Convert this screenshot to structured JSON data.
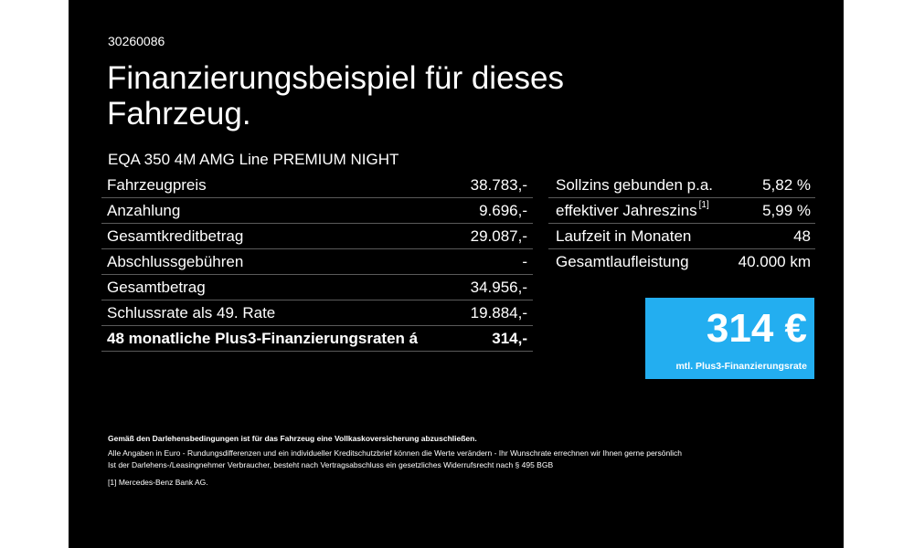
{
  "reference_number": "30260086",
  "headline": "Finanzierungsbeispiel für dieses Fahrzeug.",
  "model": "EQA 350 4M AMG Line PREMIUM NIGHT",
  "left_rows": [
    {
      "label": "Fahrzeugpreis",
      "value": "38.783,-"
    },
    {
      "label": "Anzahlung",
      "value": "9.696,-"
    },
    {
      "label": "Gesamtkreditbetrag",
      "value": "29.087,-"
    },
    {
      "label": "Abschlussgebühren",
      "value": "-"
    },
    {
      "label": "Gesamtbetrag",
      "value": "34.956,-"
    },
    {
      "label": "Schlussrate als 49. Rate",
      "value": "19.884,-"
    },
    {
      "label": "48 monatliche Plus3-Finanzierungsraten á",
      "value": "314,-"
    }
  ],
  "right_rows": [
    {
      "label": "Sollzins gebunden p.a.",
      "value": "5,82 %"
    },
    {
      "label": "effektiver Jahreszins",
      "footnote": "[1]",
      "value": "5,99 %"
    },
    {
      "label": "Laufzeit in Monaten",
      "value": "48"
    },
    {
      "label": "Gesamtlaufleistung",
      "value": "40.000 km"
    }
  ],
  "rate_box": {
    "amount": "314 €",
    "caption": "mtl. Plus3-Finanzierungsrate",
    "color": "#23aef0"
  },
  "footer": {
    "bold_note": "Gemäß den Darlehensbedingungen ist für das Fahrzeug eine Vollkaskoversicherung abzuschließen.",
    "line1": "Alle Angaben in Euro - Rundungsdifferenzen und ein individueller Kreditschutzbrief können die Werte verändern - Ihr Wunschrate errechnen wir Ihnen gerne persönlich",
    "line2": "Ist der Darlehens-/Leasingnehmer Verbraucher, besteht nach Vertragsabschluss ein gesetzliches Widerrufsrecht nach § 495 BGB",
    "footnote_mark": "[1]",
    "footnote_text": "Mercedes-Benz Bank AG."
  },
  "colors": {
    "background": "#000000",
    "text": "#ffffff",
    "divider": "#5a5a5a"
  }
}
